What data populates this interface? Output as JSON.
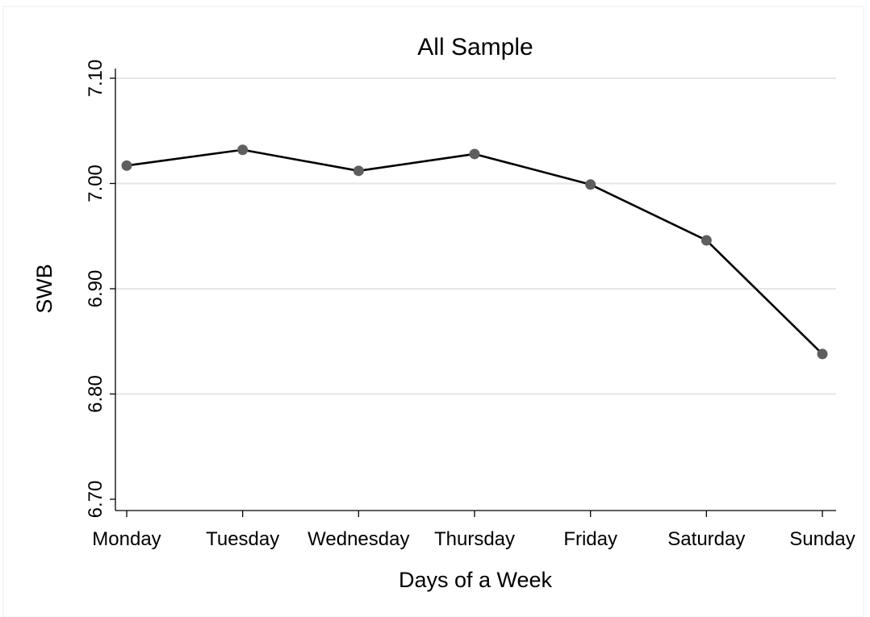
{
  "chart_data": {
    "type": "line",
    "title": "All Sample",
    "xlabel": "Days of a Week",
    "ylabel": "SWB",
    "categories": [
      "Monday",
      "Tuesday",
      "Wednesday",
      "Thursday",
      "Friday",
      "Saturday",
      "Sunday"
    ],
    "series": [
      {
        "values": [
          7.017,
          7.032,
          7.012,
          7.028,
          6.999,
          6.946,
          6.838
        ],
        "color": "#000000",
        "marker_color": "#5e5e5e"
      }
    ],
    "ylim": [
      6.7,
      7.1
    ],
    "yticks": [
      6.7,
      6.8,
      6.9,
      7.0,
      7.1
    ],
    "ytick_labels": [
      "6.70",
      "6.80",
      "6.90",
      "7.00",
      "7.10"
    ],
    "grid": true,
    "legend": "none"
  }
}
